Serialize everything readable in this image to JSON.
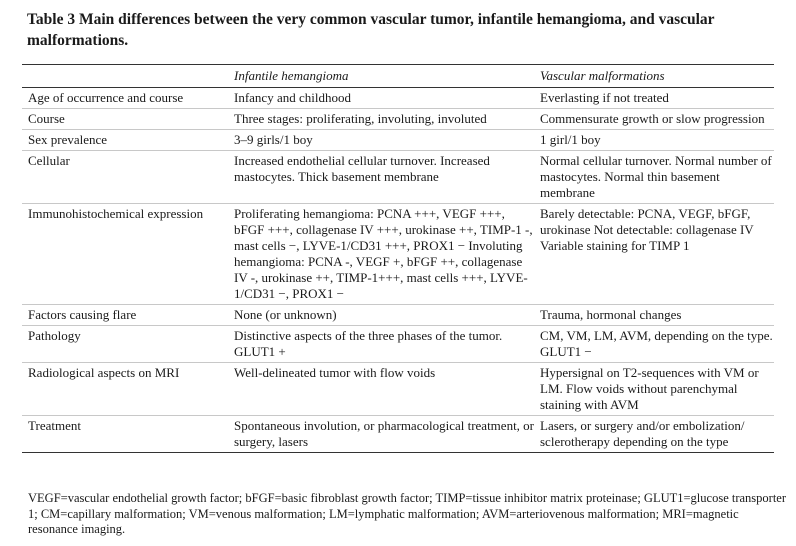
{
  "title": "Table 3 Main differences between the very common vascular tumor, infantile hemangioma, and vascular malformations.",
  "headers": [
    "",
    "Infantile hemangioma",
    "Vascular malformations"
  ],
  "rows": [
    {
      "label": "Age of occurrence and course",
      "ih": "Infancy and childhood",
      "vm": "Everlasting if not treated"
    },
    {
      "label": "Course",
      "ih": "Three stages: proliferating, involuting, involuted",
      "vm": "Commensurate growth or slow progression"
    },
    {
      "label": "Sex prevalence",
      "ih": "3–9 girls/1 boy",
      "vm": "1 girl/1 boy"
    },
    {
      "label": "Cellular",
      "ih": "Increased endothelial cellular turnover. Increased mastocytes. Thick basement membrane",
      "vm": "Normal cellular turnover. Normal number of mastocytes. Normal thin basement membrane"
    },
    {
      "label": "Immunohistochemical expression",
      "ih": "Proliferating hemangioma: PCNA +++, VEGF +++, bFGF +++, collagenase IV +++, urokinase ++, TIMP-1 -, mast cells −, LYVE-1/CD31 +++, PROX1 − Involuting hemangioma: PCNA -, VEGF +, bFGF ++, collagenase IV -, urokinase ++, TIMP-1+++, mast cells +++, LYVE-1/CD31 −, PROX1 −",
      "vm": "Barely detectable: PCNA, VEGF, bFGF, urokinase Not detectable: collagenase IV Variable staining for TIMP 1"
    },
    {
      "label": "Factors causing flare",
      "ih": "None (or unknown)",
      "vm": "Trauma, hormonal changes"
    },
    {
      "label": "Pathology",
      "ih": "Distinctive aspects of the three phases of the tumor. GLUT1 +",
      "vm": "CM, VM, LM, AVM, depending on the type. GLUT1 −"
    },
    {
      "label": "Radiological aspects on MRI",
      "ih": "Well-delineated tumor with flow voids",
      "vm": "Hypersignal on T2-sequences with VM or LM. Flow voids without parenchymal staining with AVM"
    },
    {
      "label": "Treatment",
      "ih": "Spontaneous involution, or pharmacological treatment, or surgery, lasers",
      "vm": "Lasers, or surgery and/or embolization/ sclerotherapy depending on the type"
    }
  ],
  "footnote": "VEGF=vascular endothelial growth factor; bFGF=basic fibroblast growth factor; TIMP=tissue inhibitor matrix proteinase; GLUT1=glucose transporter 1; CM=capillary malformation; VM=venous malformation; LM=lymphatic malformation; AVM=arteriovenous malformation; MRI=magnetic resonance imaging."
}
